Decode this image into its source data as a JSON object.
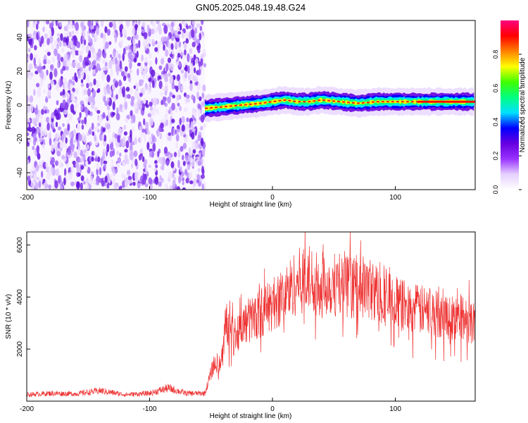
{
  "title": "GN05.2025.048.19.48.G24",
  "chart_data": [
    {
      "type": "heatmap",
      "xlabel": "Height of straight line (km)",
      "ylabel": "Frequency (Hz)",
      "xlim": [
        -200,
        165
      ],
      "ylim": [
        -50,
        50
      ],
      "xticks": [
        -200,
        -100,
        0,
        100
      ],
      "yticks": [
        -40,
        -20,
        0,
        20,
        40
      ],
      "colorbar": {
        "label": "Normalized spectral amplitude",
        "range": [
          0,
          1
        ],
        "ticks": [
          "0.0",
          "0.2",
          "0.4",
          "0.6",
          "0.8"
        ],
        "colors": [
          "#ffffff",
          "#e6d0ff",
          "#9933ff",
          "#6600e0",
          "#0000ff",
          "#00e0ff",
          "#00ff80",
          "#40ff00",
          "#ffff00",
          "#ff8000",
          "#ff0000",
          "#ff0080"
        ]
      },
      "noise_region_x": [
        -200,
        -55
      ],
      "signal_trace": {
        "x": [
          -55,
          -40,
          -25,
          -10,
          0,
          10,
          20,
          30,
          40,
          55,
          70,
          85,
          100,
          110,
          130,
          150,
          165
        ],
        "y": [
          -2,
          -1,
          0,
          1,
          2,
          3,
          2,
          2,
          3,
          2,
          1,
          2,
          2,
          2,
          2,
          2,
          2
        ]
      }
    },
    {
      "type": "line",
      "xlabel": "Height of straight line (km)",
      "ylabel": "SNR (10 * v/v)",
      "xlim": [
        -200,
        165
      ],
      "ylim": [
        0,
        6500
      ],
      "xticks": [
        -200,
        -100,
        0,
        100
      ],
      "yticks": [
        2000,
        4000,
        6000
      ],
      "line_color": "#ee3333",
      "series": [
        {
          "x": [
            -200,
            -180,
            -160,
            -140,
            -120,
            -100,
            -85,
            -70,
            -55,
            -48,
            -42,
            -38,
            -30,
            -20,
            -10,
            0,
            10,
            20,
            30,
            40,
            50,
            60,
            70,
            80,
            90,
            100,
            110,
            120,
            130,
            140,
            150,
            165
          ],
          "values": [
            250,
            300,
            280,
            400,
            250,
            300,
            500,
            300,
            300,
            1400,
            1500,
            3000,
            2600,
            3100,
            3400,
            3700,
            4100,
            4600,
            4700,
            4500,
            4500,
            4400,
            4400,
            4300,
            4000,
            3800,
            3600,
            3500,
            3400,
            3300,
            3200,
            3100
          ]
        }
      ]
    }
  ]
}
